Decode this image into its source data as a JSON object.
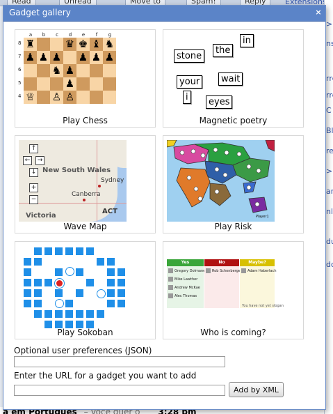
{
  "background": {
    "toolbar": [
      "Read",
      "Unread",
      "Move to",
      "Spam!",
      "Reply"
    ],
    "extensions_link": "Extensions",
    "right_fragments": [
      ">",
      "ns",
      "rre",
      "rre",
      "C I",
      "Blip",
      "ren",
      ">",
      "ant",
      "nli",
      "du",
      "do"
    ],
    "bottom_subject": "a em Português",
    "bottom_snippet": "– Você quer o",
    "bottom_time": "3:28 pm"
  },
  "dialog": {
    "title": "Gadget gallery",
    "close_glyph": "×"
  },
  "gadgets": [
    {
      "label": "Play Chess"
    },
    {
      "label": "Magnetic poetry"
    },
    {
      "label": "Wave Map"
    },
    {
      "label": "Play Risk"
    },
    {
      "label": "Play Sokoban"
    },
    {
      "label": "Who is coming?"
    }
  ],
  "chess": {
    "files": [
      "a",
      "b",
      "c",
      "d",
      "e",
      "f",
      "g"
    ],
    "ranks": [
      "8",
      "7",
      "6",
      "5",
      "4"
    ],
    "rows": [
      [
        "♜",
        "",
        "",
        "♛",
        "♚",
        "♝",
        "♞"
      ],
      [
        "♟",
        "♟",
        "♟",
        "",
        "♟",
        "♟",
        "♟"
      ],
      [
        "",
        "",
        "♞",
        "♟",
        "",
        "",
        ""
      ],
      [
        "",
        "",
        "",
        "♟",
        "",
        "",
        ""
      ],
      [
        "♕",
        "",
        "♙",
        "♙",
        "",
        "",
        ""
      ]
    ]
  },
  "poetry": {
    "words": [
      "in",
      "the",
      "stone",
      "wait",
      "your",
      "i",
      "eyes"
    ]
  },
  "map": {
    "region": "New South Wales",
    "city1": "Sydney",
    "city2": "Canberra",
    "territory": "ACT",
    "state": "Victoria",
    "nav_glyphs": [
      "↑",
      "←",
      "→",
      "↓",
      "+",
      "−"
    ]
  },
  "risk": {
    "player_label": "Player1"
  },
  "who": {
    "yes_label": "Yes",
    "no_label": "No",
    "maybe_label": "Maybe?",
    "yes_people": [
      "Gregory Dolmanette",
      "Mike Lawther",
      "Andrew McKae",
      "Alec Thomas"
    ],
    "no_people": [
      "Rob Schonberger"
    ],
    "maybe_people": [
      "Adam Haberlach"
    ],
    "footer": "You have not yet slogan"
  },
  "form": {
    "prefs_label": "Optional user preferences (JSON)",
    "prefs_value": "",
    "url_label": "Enter the URL for a gadget you want to add",
    "url_value": "",
    "add_button": "Add by XML"
  },
  "colors": {
    "titlebar": "#5b84c8",
    "sokoban_blue": "#1f8fe8",
    "yes_green": "#3aa63a",
    "no_red": "#b01010",
    "maybe_yellow": "#d8c000"
  }
}
